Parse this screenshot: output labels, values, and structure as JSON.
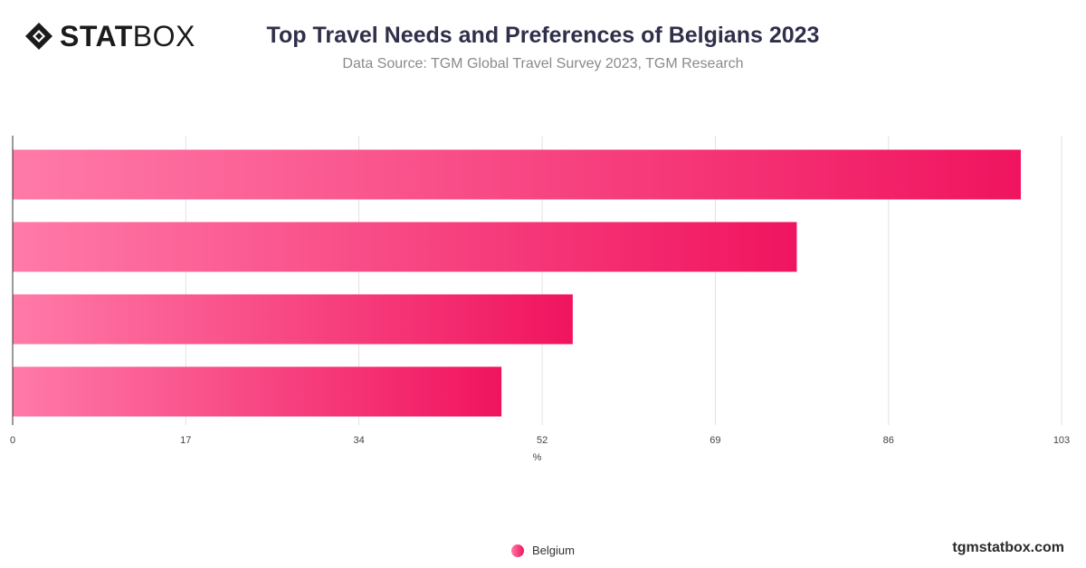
{
  "brand": {
    "logo_bold": "STAT",
    "logo_thin": "BOX",
    "site": "tgmstatbox.com"
  },
  "header": {
    "title": "Top Travel Needs and Preferences of Belgians 2023",
    "subtitle": "Data Source: TGM Global Travel Survey 2023, TGM Research"
  },
  "colors": {
    "bar_start": "#ff7aa8",
    "bar_end": "#f0145f",
    "grid": "#e2e2e2",
    "axis": "#333333"
  },
  "chart_data": {
    "type": "bar",
    "orientation": "horizontal",
    "title": "Top Travel Needs and Preferences of Belgians 2023",
    "xlabel": "%",
    "ylabel": "",
    "xlim": [
      0,
      103
    ],
    "ticks": [
      0,
      17,
      34,
      52,
      69,
      86,
      103
    ],
    "grid": true,
    "legend_position": "bottom-center",
    "categories": [
      "",
      "",
      "",
      ""
    ],
    "series": [
      {
        "name": "Belgium",
        "values": [
          99,
          77,
          55,
          48
        ]
      }
    ]
  }
}
